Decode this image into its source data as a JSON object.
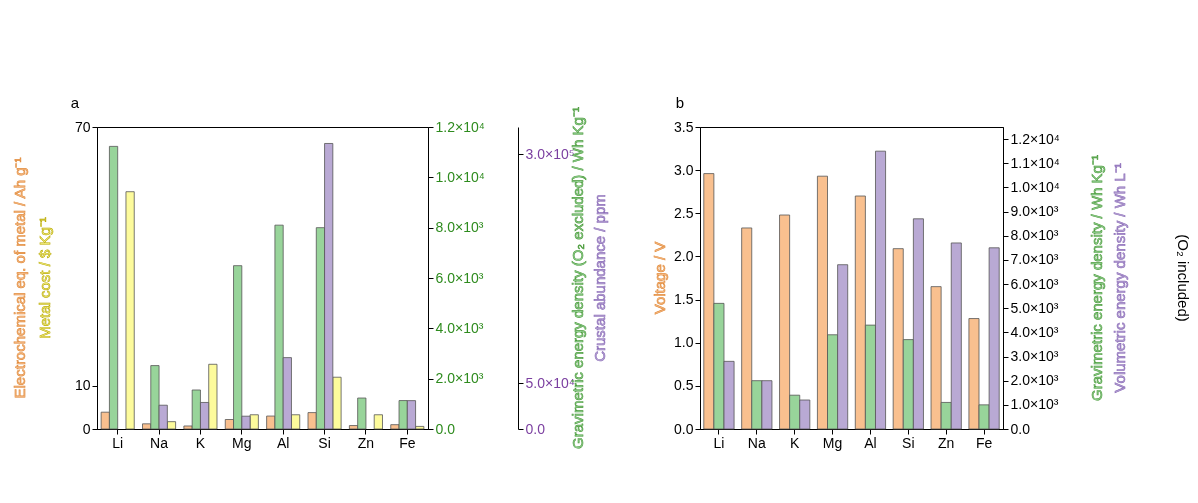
{
  "chart_data": [
    {
      "type": "bar",
      "title": "a",
      "categories": [
        "Li",
        "Na",
        "K",
        "Mg",
        "Al",
        "Si",
        "Zn",
        "Fe"
      ],
      "ylim": [
        0,
        70
      ],
      "yticks": [
        0,
        10,
        70
      ],
      "y2lim": [
        0,
        12000
      ],
      "y2ticks": [
        {
          "value": 0,
          "label": "0.0"
        },
        {
          "value": 2000,
          "label": "2.0×10³"
        },
        {
          "value": 4000,
          "label": "4.0×10³"
        },
        {
          "value": 6000,
          "label": "6.0×10³"
        },
        {
          "value": 8000,
          "label": "8.0×10³"
        },
        {
          "value": 10000,
          "label": "1.0×10⁴"
        },
        {
          "value": 12000,
          "label": "1.2×10⁴"
        }
      ],
      "y3lim": [
        0,
        330000
      ],
      "y3ticks": [
        {
          "value": 0,
          "label": "0.0"
        },
        {
          "value": 50000,
          "label": "5.0×10⁴"
        },
        {
          "value": 300000,
          "label": "3.0×10⁵"
        }
      ],
      "series": [
        {
          "name": "Electrochemical eq. of metal  / Ah g⁻¹",
          "color": "#f9c08f",
          "values": [
            3.9,
            1.2,
            0.7,
            2.2,
            3.0,
            3.8,
            0.8,
            1.0
          ]
        },
        {
          "name": "Gravimetric energy density (O₂ excluded) / Wh Kg⁻¹",
          "color": "#98d49a",
          "axis": "y2",
          "values": [
            11230,
            2520,
            1550,
            6490,
            8100,
            8000,
            1230,
            1130
          ]
        },
        {
          "name": "Crustal abundance / ppm",
          "color": "#b9a9d4",
          "axis": "y3",
          "values": [
            null,
            26000,
            29000,
            14000,
            78000,
            312000,
            null,
            31000
          ]
        },
        {
          "name": "Metal cost  / $ Kg⁻¹",
          "color": "#fdfb9c",
          "values": [
            55,
            1.7,
            15,
            3.3,
            3.3,
            12,
            3.3,
            0.6
          ]
        }
      ]
    },
    {
      "type": "bar",
      "title": "b",
      "categories": [
        "Li",
        "Na",
        "K",
        "Mg",
        "Al",
        "Si",
        "Zn",
        "Fe"
      ],
      "ylim": [
        0,
        3.5
      ],
      "yticks": [
        {
          "value": 0,
          "label": "0.0"
        },
        0.5,
        {
          "value": 1,
          "label": "1.0"
        },
        1.5,
        {
          "value": 2,
          "label": "2.0"
        },
        2.5,
        {
          "value": 3,
          "label": "3.0"
        },
        3.5
      ],
      "y2lim": [
        0,
        12500
      ],
      "y2ticks": [
        {
          "value": 0,
          "label": "0.0"
        },
        {
          "value": 1000,
          "label": "1.0×10³"
        },
        {
          "value": 2000,
          "label": "2.0×10³"
        },
        {
          "value": 3000,
          "label": "3.0×10³"
        },
        {
          "value": 4000,
          "label": "4.0×10³"
        },
        {
          "value": 5000,
          "label": "5.0×10³"
        },
        {
          "value": 6000,
          "label": "6.0×10³"
        },
        {
          "value": 7000,
          "label": "7.0×10³"
        },
        {
          "value": 8000,
          "label": "8.0×10³"
        },
        {
          "value": 9000,
          "label": "9.0×10³"
        },
        {
          "value": 10000,
          "label": "1.0×10⁴"
        },
        {
          "value": 11000,
          "label": "1.1×10⁴"
        },
        {
          "value": 12000,
          "label": "1.2×10⁴"
        }
      ],
      "y2label": "(O₂ included)",
      "series": [
        {
          "name": "Voltage / V",
          "color": "#f9c08f",
          "values": [
            2.96,
            2.33,
            2.48,
            2.93,
            2.7,
            2.09,
            1.65,
            1.28
          ]
        },
        {
          "name": "Gravimetric energy density / Wh Kg⁻¹",
          "color": "#98d49a",
          "axis": "y2",
          "values": [
            5200,
            2000,
            1400,
            3900,
            4300,
            3700,
            1100,
            1000
          ]
        },
        {
          "name": "Volumetric energy density / Wh L⁻¹",
          "color": "#b9a9d4",
          "axis": "y2",
          "values": [
            2800,
            2000,
            1200,
            6800,
            11500,
            8700,
            7700,
            7500
          ]
        }
      ]
    }
  ]
}
